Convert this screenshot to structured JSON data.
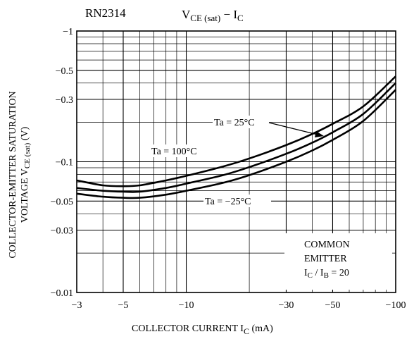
{
  "chart_data": {
    "type": "line",
    "device": "RN2314",
    "title": {
      "main": "V",
      "sub": "CE (sat)",
      "sep": " − ",
      "i": "I",
      "isub": "C"
    },
    "xlabel": {
      "main": "COLLECTOR CURRENT   I",
      "sub": "C",
      "unit": "   (mA)"
    },
    "ylabel": {
      "line1": "COLLECTOR-EMITTER SATURATION",
      "line2_prefix": "VOLTAGE    V",
      "line2_sub": "CE (sat)",
      "line2_suffix": "   (V)"
    },
    "x_scale": "log",
    "y_scale": "log",
    "xlim": [
      -3,
      -100
    ],
    "ylim": [
      -0.01,
      -1
    ],
    "x_ticks": [
      {
        "value": -3,
        "label": "−3"
      },
      {
        "value": -5,
        "label": "−5"
      },
      {
        "value": -10,
        "label": "−10"
      },
      {
        "value": -30,
        "label": "−30"
      },
      {
        "value": -50,
        "label": "−50"
      },
      {
        "value": -100,
        "label": "−100"
      }
    ],
    "y_ticks": [
      {
        "value": -1,
        "label": "−1"
      },
      {
        "value": -0.5,
        "label": "−0.5"
      },
      {
        "value": -0.3,
        "label": "−0.3"
      },
      {
        "value": -0.1,
        "label": "−0.1"
      },
      {
        "value": -0.05,
        "label": "−0.05"
      },
      {
        "value": -0.03,
        "label": "−0.03"
      },
      {
        "value": -0.01,
        "label": "−0.01"
      }
    ],
    "grid": true,
    "series": [
      {
        "name": "Ta = 100°C",
        "x": [
          -3,
          -4,
          -5,
          -6,
          -8,
          -10,
          -15,
          -20,
          -30,
          -40,
          -50,
          -70,
          -100
        ],
        "y": [
          -0.072,
          -0.066,
          -0.065,
          -0.066,
          -0.072,
          -0.078,
          -0.092,
          -0.106,
          -0.134,
          -0.163,
          -0.195,
          -0.265,
          -0.45
        ]
      },
      {
        "name": "Ta = 25°C",
        "x": [
          -3,
          -4,
          -5,
          -6,
          -8,
          -10,
          -15,
          -20,
          -30,
          -40,
          -50,
          -70,
          -100
        ],
        "y": [
          -0.063,
          -0.06,
          -0.059,
          -0.059,
          -0.063,
          -0.068,
          -0.079,
          -0.091,
          -0.115,
          -0.14,
          -0.168,
          -0.232,
          -0.4
        ]
      },
      {
        "name": "Ta = −25°C",
        "x": [
          -3,
          -4,
          -5,
          -6,
          -8,
          -10,
          -15,
          -20,
          -30,
          -40,
          -50,
          -70,
          -100
        ],
        "y": [
          -0.057,
          -0.054,
          -0.053,
          -0.053,
          -0.056,
          -0.06,
          -0.069,
          -0.079,
          -0.1,
          -0.122,
          -0.147,
          -0.205,
          -0.355
        ]
      }
    ],
    "annotations": {
      "ta100": "Ta = 100°C",
      "ta25": "Ta = 25°C",
      "tam25": "Ta = −25°C"
    },
    "legend_box": {
      "line1": "COMMON",
      "line2": "EMITTER",
      "line3_a": "I",
      "line3_asub": "C",
      "line3_mid": " / I",
      "line3_bsub": "B",
      "line3_end": " = 20"
    }
  }
}
